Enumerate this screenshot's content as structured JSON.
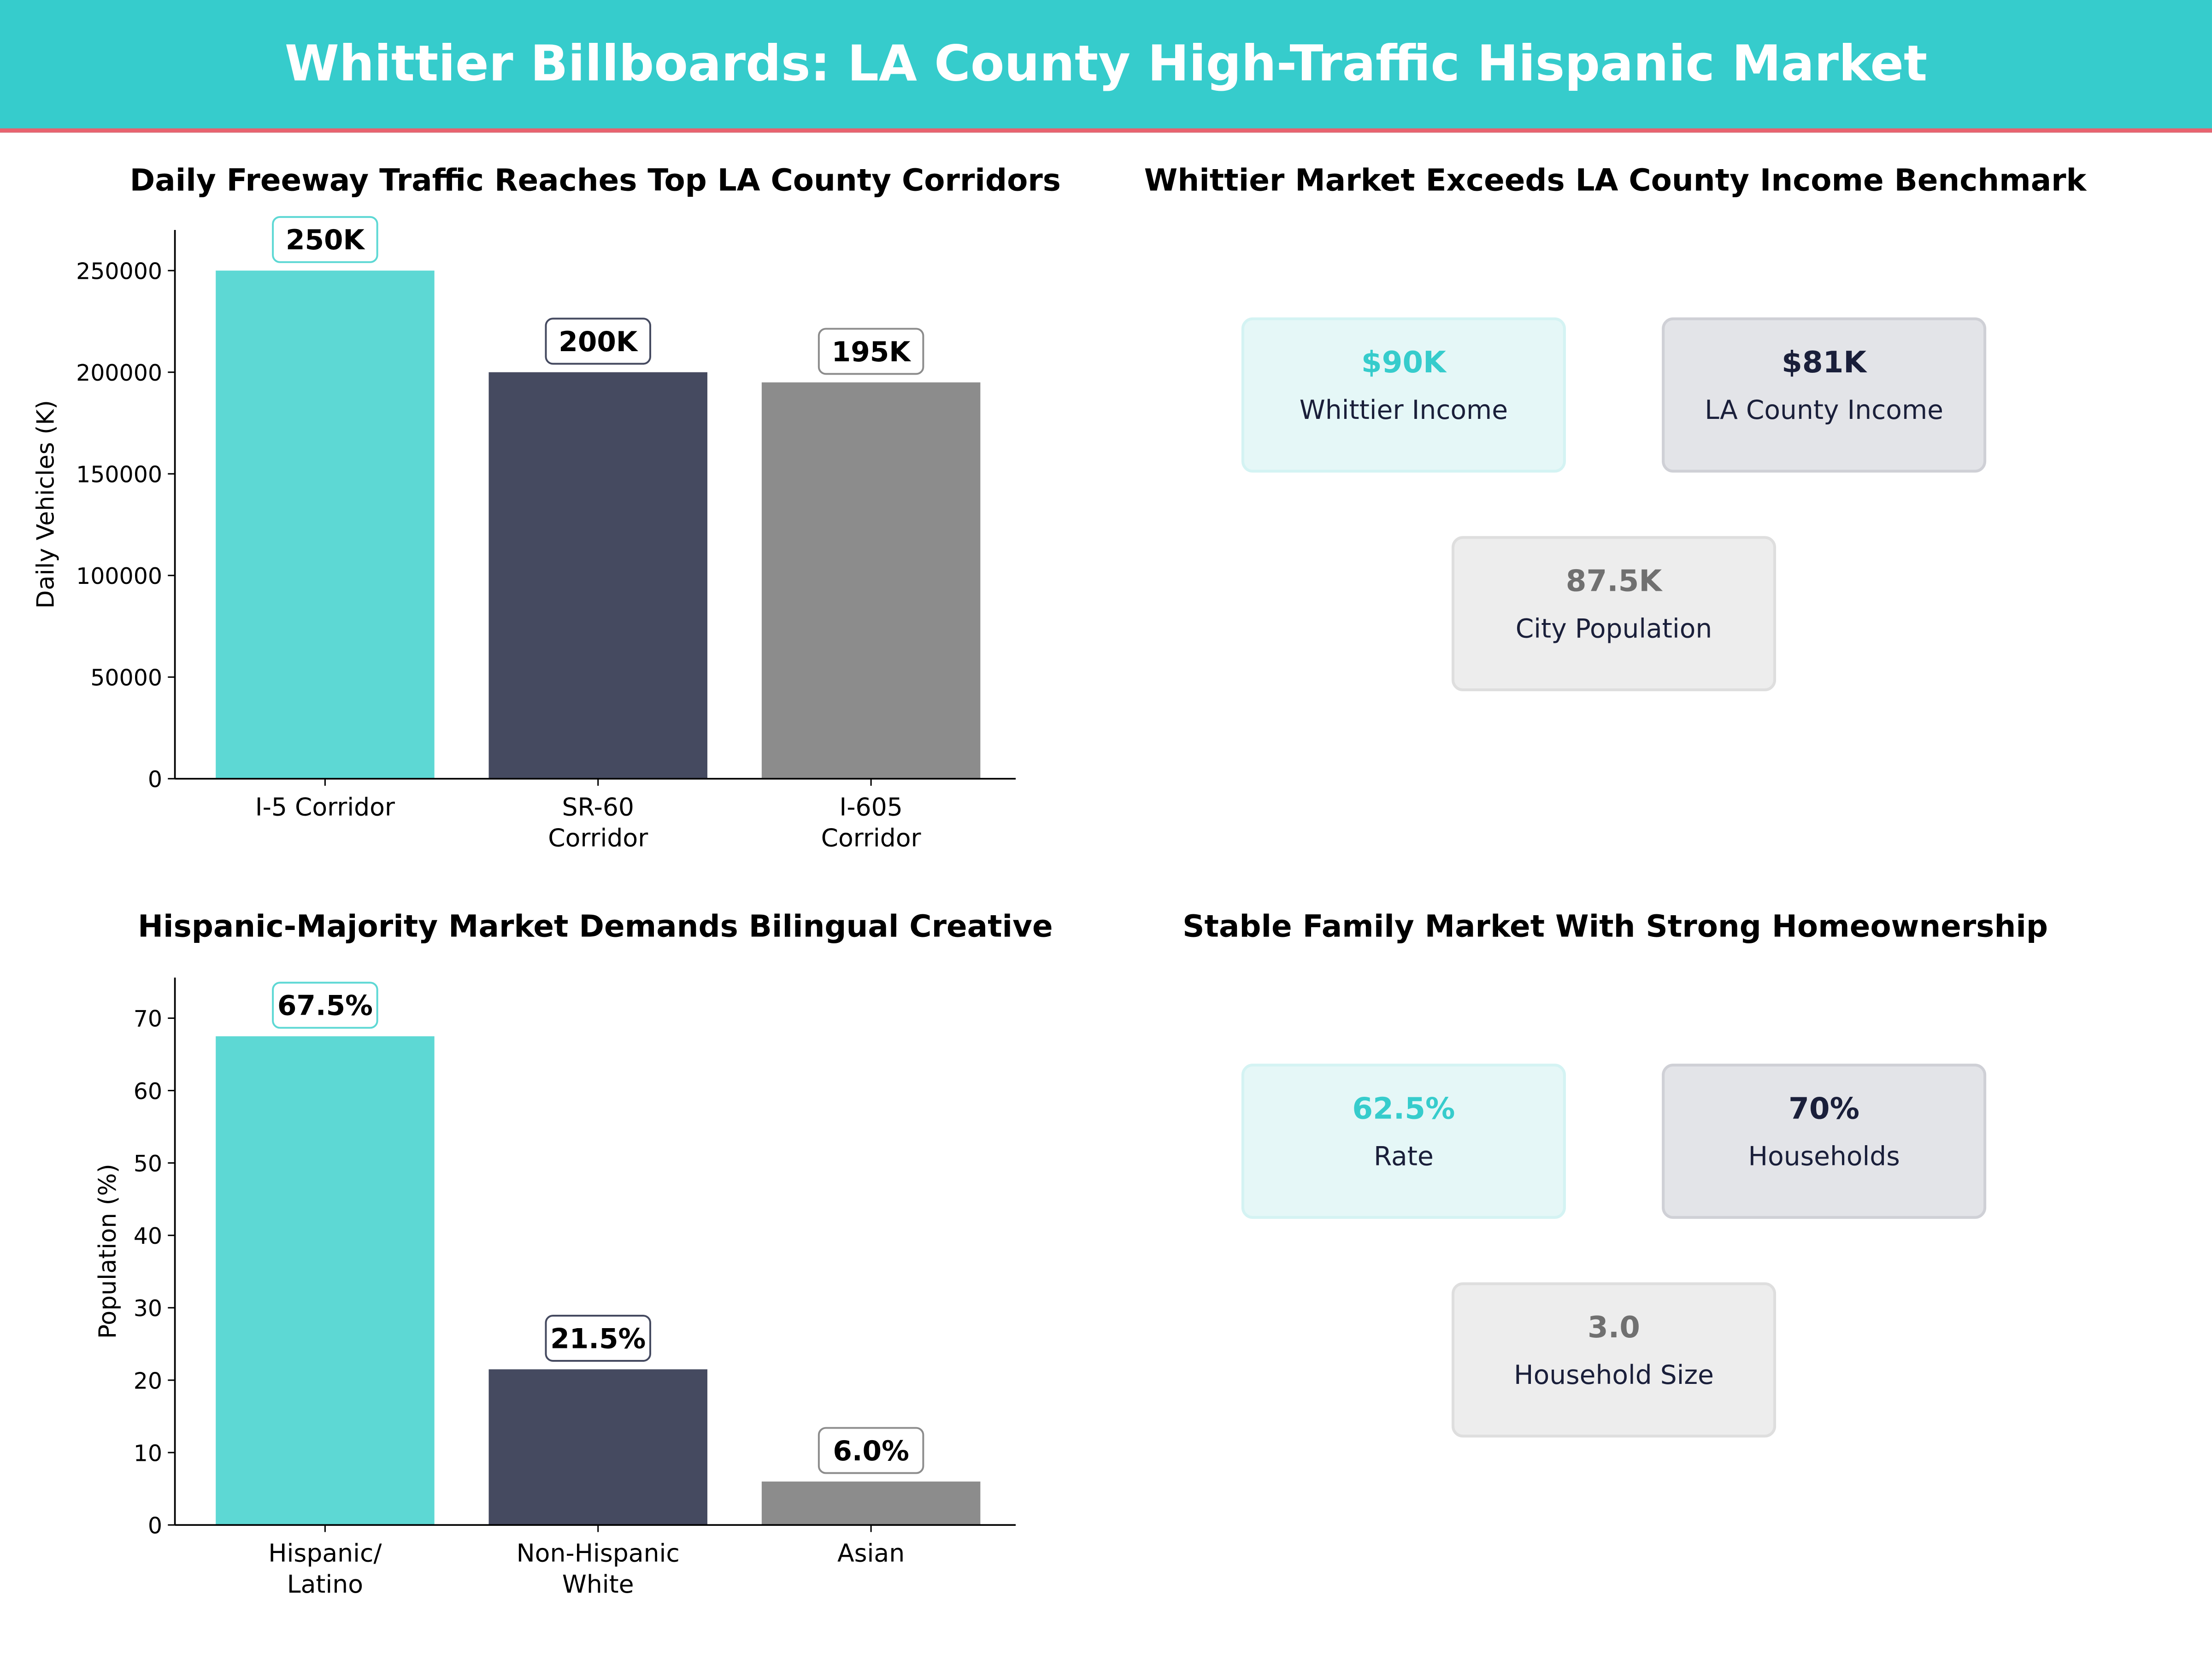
{
  "title": "Whittier Billboards: LA County High-Traffic Hispanic Market",
  "colors": {
    "banner": "#36cccc",
    "accent_line": "#e8636f",
    "teal": "#5dd8d4",
    "navy": "#454a60",
    "gray": "#8c8c8c"
  },
  "chart_data": [
    {
      "type": "bar",
      "title": "Daily Freeway Traffic Reaches Top LA County Corridors",
      "ylabel": "Daily Vehicles (K)",
      "xlabel": "",
      "categories": [
        "I-5 Corridor",
        "SR-60\nCorridor",
        "I-605\nCorridor"
      ],
      "values": [
        250000,
        200000,
        195000
      ],
      "data_labels": [
        "250K",
        "200K",
        "195K"
      ],
      "yticks": [
        0,
        50000,
        100000,
        150000,
        200000,
        250000
      ],
      "ylim": [
        0,
        270000
      ],
      "bar_colors": [
        "#5dd8d4",
        "#454a60",
        "#8c8c8c"
      ],
      "label_border_colors": [
        "#5dd8d4",
        "#454a60",
        "#8c8c8c"
      ]
    },
    {
      "type": "bar",
      "title": "Hispanic-Majority Market Demands Bilingual Creative",
      "ylabel": "Population (%)",
      "xlabel": "",
      "categories": [
        "Hispanic/\nLatino",
        "Non-Hispanic\nWhite",
        "Asian"
      ],
      "values": [
        67.5,
        21.5,
        6.0
      ],
      "data_labels": [
        "67.5%",
        "21.5%",
        "6.0%"
      ],
      "yticks": [
        0,
        10,
        20,
        30,
        40,
        50,
        60,
        70
      ],
      "ylim": [
        0,
        75.6
      ],
      "bar_colors": [
        "#5dd8d4",
        "#454a60",
        "#8c8c8c"
      ],
      "label_border_colors": [
        "#5dd8d4",
        "#454a60",
        "#8c8c8c"
      ]
    }
  ],
  "panels": [
    {
      "title": "Whittier Market Exceeds LA County Income Benchmark",
      "cards": [
        {
          "value": "$90K",
          "label": "Whittier Income"
        },
        {
          "value": "$81K",
          "label": "LA County Income"
        },
        {
          "value": "87.5K",
          "label": "City Population"
        }
      ]
    },
    {
      "title": "Stable Family Market With Strong Homeownership",
      "cards": [
        {
          "value": "62.5%",
          "label": "Rate"
        },
        {
          "value": "70%",
          "label": "Households"
        },
        {
          "value": "3.0",
          "label": "Household Size"
        }
      ]
    }
  ]
}
